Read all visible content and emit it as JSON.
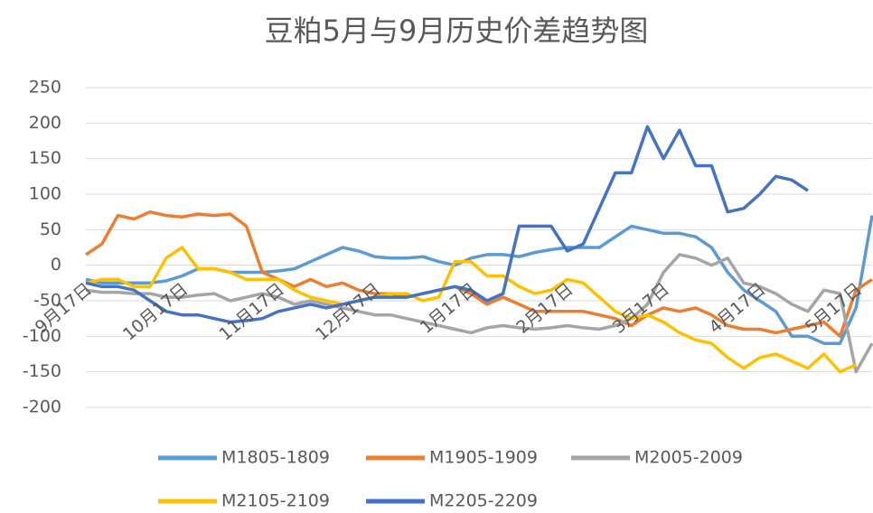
{
  "chart_data": {
    "type": "line",
    "title": "豆粕5月与9月历史价差趋势图",
    "categories": [
      "9月17日",
      null,
      null,
      null,
      null,
      null,
      "10月17日",
      null,
      null,
      null,
      null,
      null,
      "11月17日",
      null,
      null,
      null,
      null,
      null,
      "12月17日",
      null,
      null,
      null,
      null,
      null,
      "1月17日",
      null,
      null,
      null,
      null,
      null,
      "2月17日",
      null,
      null,
      null,
      null,
      null,
      "3月17日",
      null,
      null,
      null,
      null,
      null,
      "4月17日",
      null,
      null,
      null,
      null,
      null,
      "5月17日",
      null
    ],
    "series": [
      {
        "name": "M1805-1809",
        "color": "#5b9bd5",
        "values": [
          -20,
          -25,
          -25,
          -25,
          -25,
          -22,
          -15,
          -5,
          -5,
          -10,
          -10,
          -10,
          -8,
          -5,
          5,
          15,
          25,
          20,
          12,
          10,
          10,
          12,
          5,
          0,
          10,
          15,
          15,
          12,
          18,
          22,
          25,
          25,
          25,
          40,
          55,
          50,
          45,
          45,
          40,
          25,
          -10,
          -35,
          -50,
          -65,
          -100,
          -100,
          -110,
          -110,
          -60,
          70
        ]
      },
      {
        "name": "M1905-1909",
        "color": "#ed7d31",
        "values": [
          15,
          30,
          70,
          65,
          75,
          70,
          68,
          72,
          70,
          72,
          55,
          -10,
          -20,
          -30,
          -20,
          -30,
          -25,
          -35,
          -40,
          -40,
          -45,
          -40,
          -35,
          -30,
          -40,
          -55,
          -45,
          -55,
          -65,
          -65,
          -65,
          -65,
          -70,
          -75,
          -85,
          -70,
          -60,
          -65,
          -60,
          -70,
          -85,
          -90,
          -90,
          -95,
          -90,
          -85,
          -80,
          -100,
          -35,
          -20
        ]
      },
      {
        "name": "M2005-2009",
        "color": "#a5a5a5",
        "values": [
          -35,
          -38,
          -38,
          -40,
          -40,
          -45,
          -45,
          -42,
          -40,
          -50,
          -45,
          -40,
          -45,
          -55,
          -50,
          -55,
          -60,
          -65,
          -70,
          -70,
          -75,
          -80,
          -85,
          -90,
          -95,
          -88,
          -85,
          -88,
          -90,
          -88,
          -85,
          -88,
          -90,
          -85,
          -75,
          -55,
          -10,
          15,
          10,
          0,
          10,
          -25,
          -30,
          -40,
          -55,
          -65,
          -35,
          -40,
          -150,
          -110
        ]
      },
      {
        "name": "M2105-2109",
        "color": "#ffc000",
        "values": [
          -25,
          -20,
          -20,
          -30,
          -30,
          10,
          25,
          -5,
          -5,
          -10,
          -20,
          -20,
          -20,
          -35,
          -45,
          -50,
          -55,
          -50,
          -45,
          -40,
          -40,
          -50,
          -45,
          5,
          5,
          -15,
          -15,
          -30,
          -40,
          -35,
          -20,
          -25,
          -45,
          -65,
          -75,
          -70,
          -80,
          -95,
          -105,
          -110,
          -130,
          -145,
          -130,
          -125,
          -135,
          -145,
          -125,
          -150,
          -140,
          null
        ]
      },
      {
        "name": "M2205-2209",
        "color": "#4472c4",
        "values": [
          -25,
          -30,
          -30,
          -35,
          -50,
          -65,
          -70,
          -70,
          -75,
          -80,
          -78,
          -75,
          -65,
          -60,
          -55,
          -60,
          -55,
          -50,
          -45,
          -45,
          -45,
          -40,
          -35,
          -30,
          -35,
          -50,
          -40,
          55,
          55,
          55,
          20,
          30,
          80,
          130,
          130,
          195,
          150,
          190,
          140,
          140,
          75,
          80,
          100,
          125,
          120,
          105,
          null,
          null,
          null,
          null
        ]
      }
    ],
    "ylim": [
      -200,
      250
    ],
    "yticks": [
      -200,
      -150,
      -100,
      -50,
      0,
      50,
      100,
      150,
      200,
      250
    ],
    "grid": true,
    "legend": "bottom"
  }
}
